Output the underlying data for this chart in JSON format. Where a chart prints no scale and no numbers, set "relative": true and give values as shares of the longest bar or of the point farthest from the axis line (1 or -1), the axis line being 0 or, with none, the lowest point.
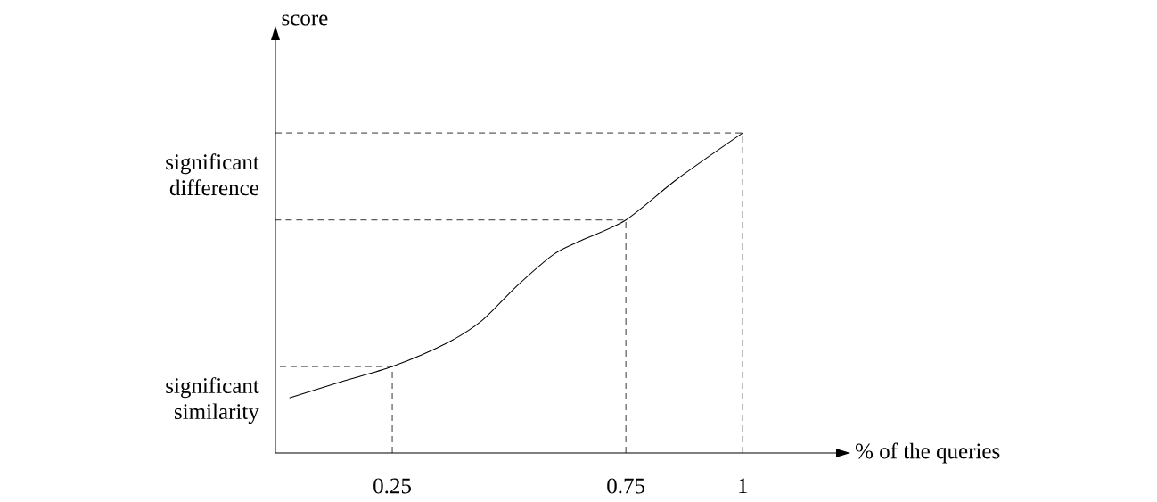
{
  "chart_data": {
    "type": "line",
    "xlabel": "% of the queries",
    "ylabel": "score",
    "relative": true,
    "x": [
      0.03,
      0.14,
      0.25,
      0.365,
      0.44,
      0.517,
      0.594,
      0.65,
      0.75,
      0.86,
      1
    ],
    "values": [
      0.172,
      0.222,
      0.27,
      0.342,
      0.411,
      0.522,
      0.619,
      0.661,
      0.728,
      0.856,
      1
    ],
    "color": "#000000",
    "line_style": "solid",
    "xlim": [
      0,
      1.2
    ],
    "xticks": [
      0.25,
      0.75,
      1
    ],
    "ref_lines": [
      {
        "axis": "x",
        "value": 0.25,
        "line_style": "dashed"
      },
      {
        "axis": "x",
        "value": 0.75,
        "line_style": "dashed"
      },
      {
        "axis": "x",
        "value": 1,
        "line_style": "dashed"
      }
    ],
    "annotations": [
      "significant similarity",
      "significant difference"
    ]
  }
}
